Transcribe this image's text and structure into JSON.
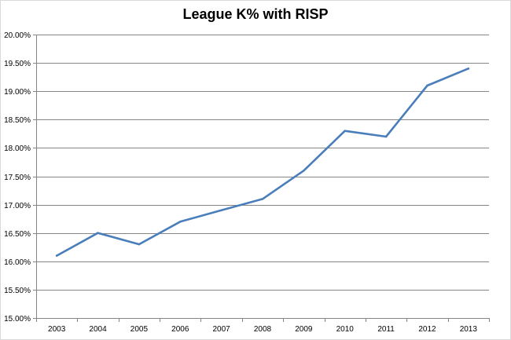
{
  "chart_data": {
    "type": "line",
    "title": "League K% with RISP",
    "xlabel": "",
    "ylabel": "",
    "categories": [
      "2003",
      "2004",
      "2005",
      "2006",
      "2007",
      "2008",
      "2009",
      "2010",
      "2011",
      "2012",
      "2013"
    ],
    "series": [
      {
        "values": [
          16.1,
          16.5,
          16.3,
          16.7,
          16.9,
          17.1,
          17.6,
          18.3,
          18.2,
          19.1,
          19.4
        ]
      }
    ],
    "ylim": [
      15.0,
      20.0
    ],
    "yticks": [
      15.0,
      15.5,
      16.0,
      16.5,
      17.0,
      17.5,
      18.0,
      18.5,
      19.0,
      19.5,
      20.0
    ],
    "ytick_labels": [
      "15.00%",
      "15.50%",
      "16.00%",
      "16.50%",
      "17.00%",
      "17.50%",
      "18.00%",
      "18.50%",
      "19.00%",
      "19.50%",
      "20.00%"
    ],
    "grid": true,
    "legend": "none",
    "colors": {
      "line": "#4a7ebb",
      "grid": "#868686",
      "axis": "#868686"
    }
  }
}
